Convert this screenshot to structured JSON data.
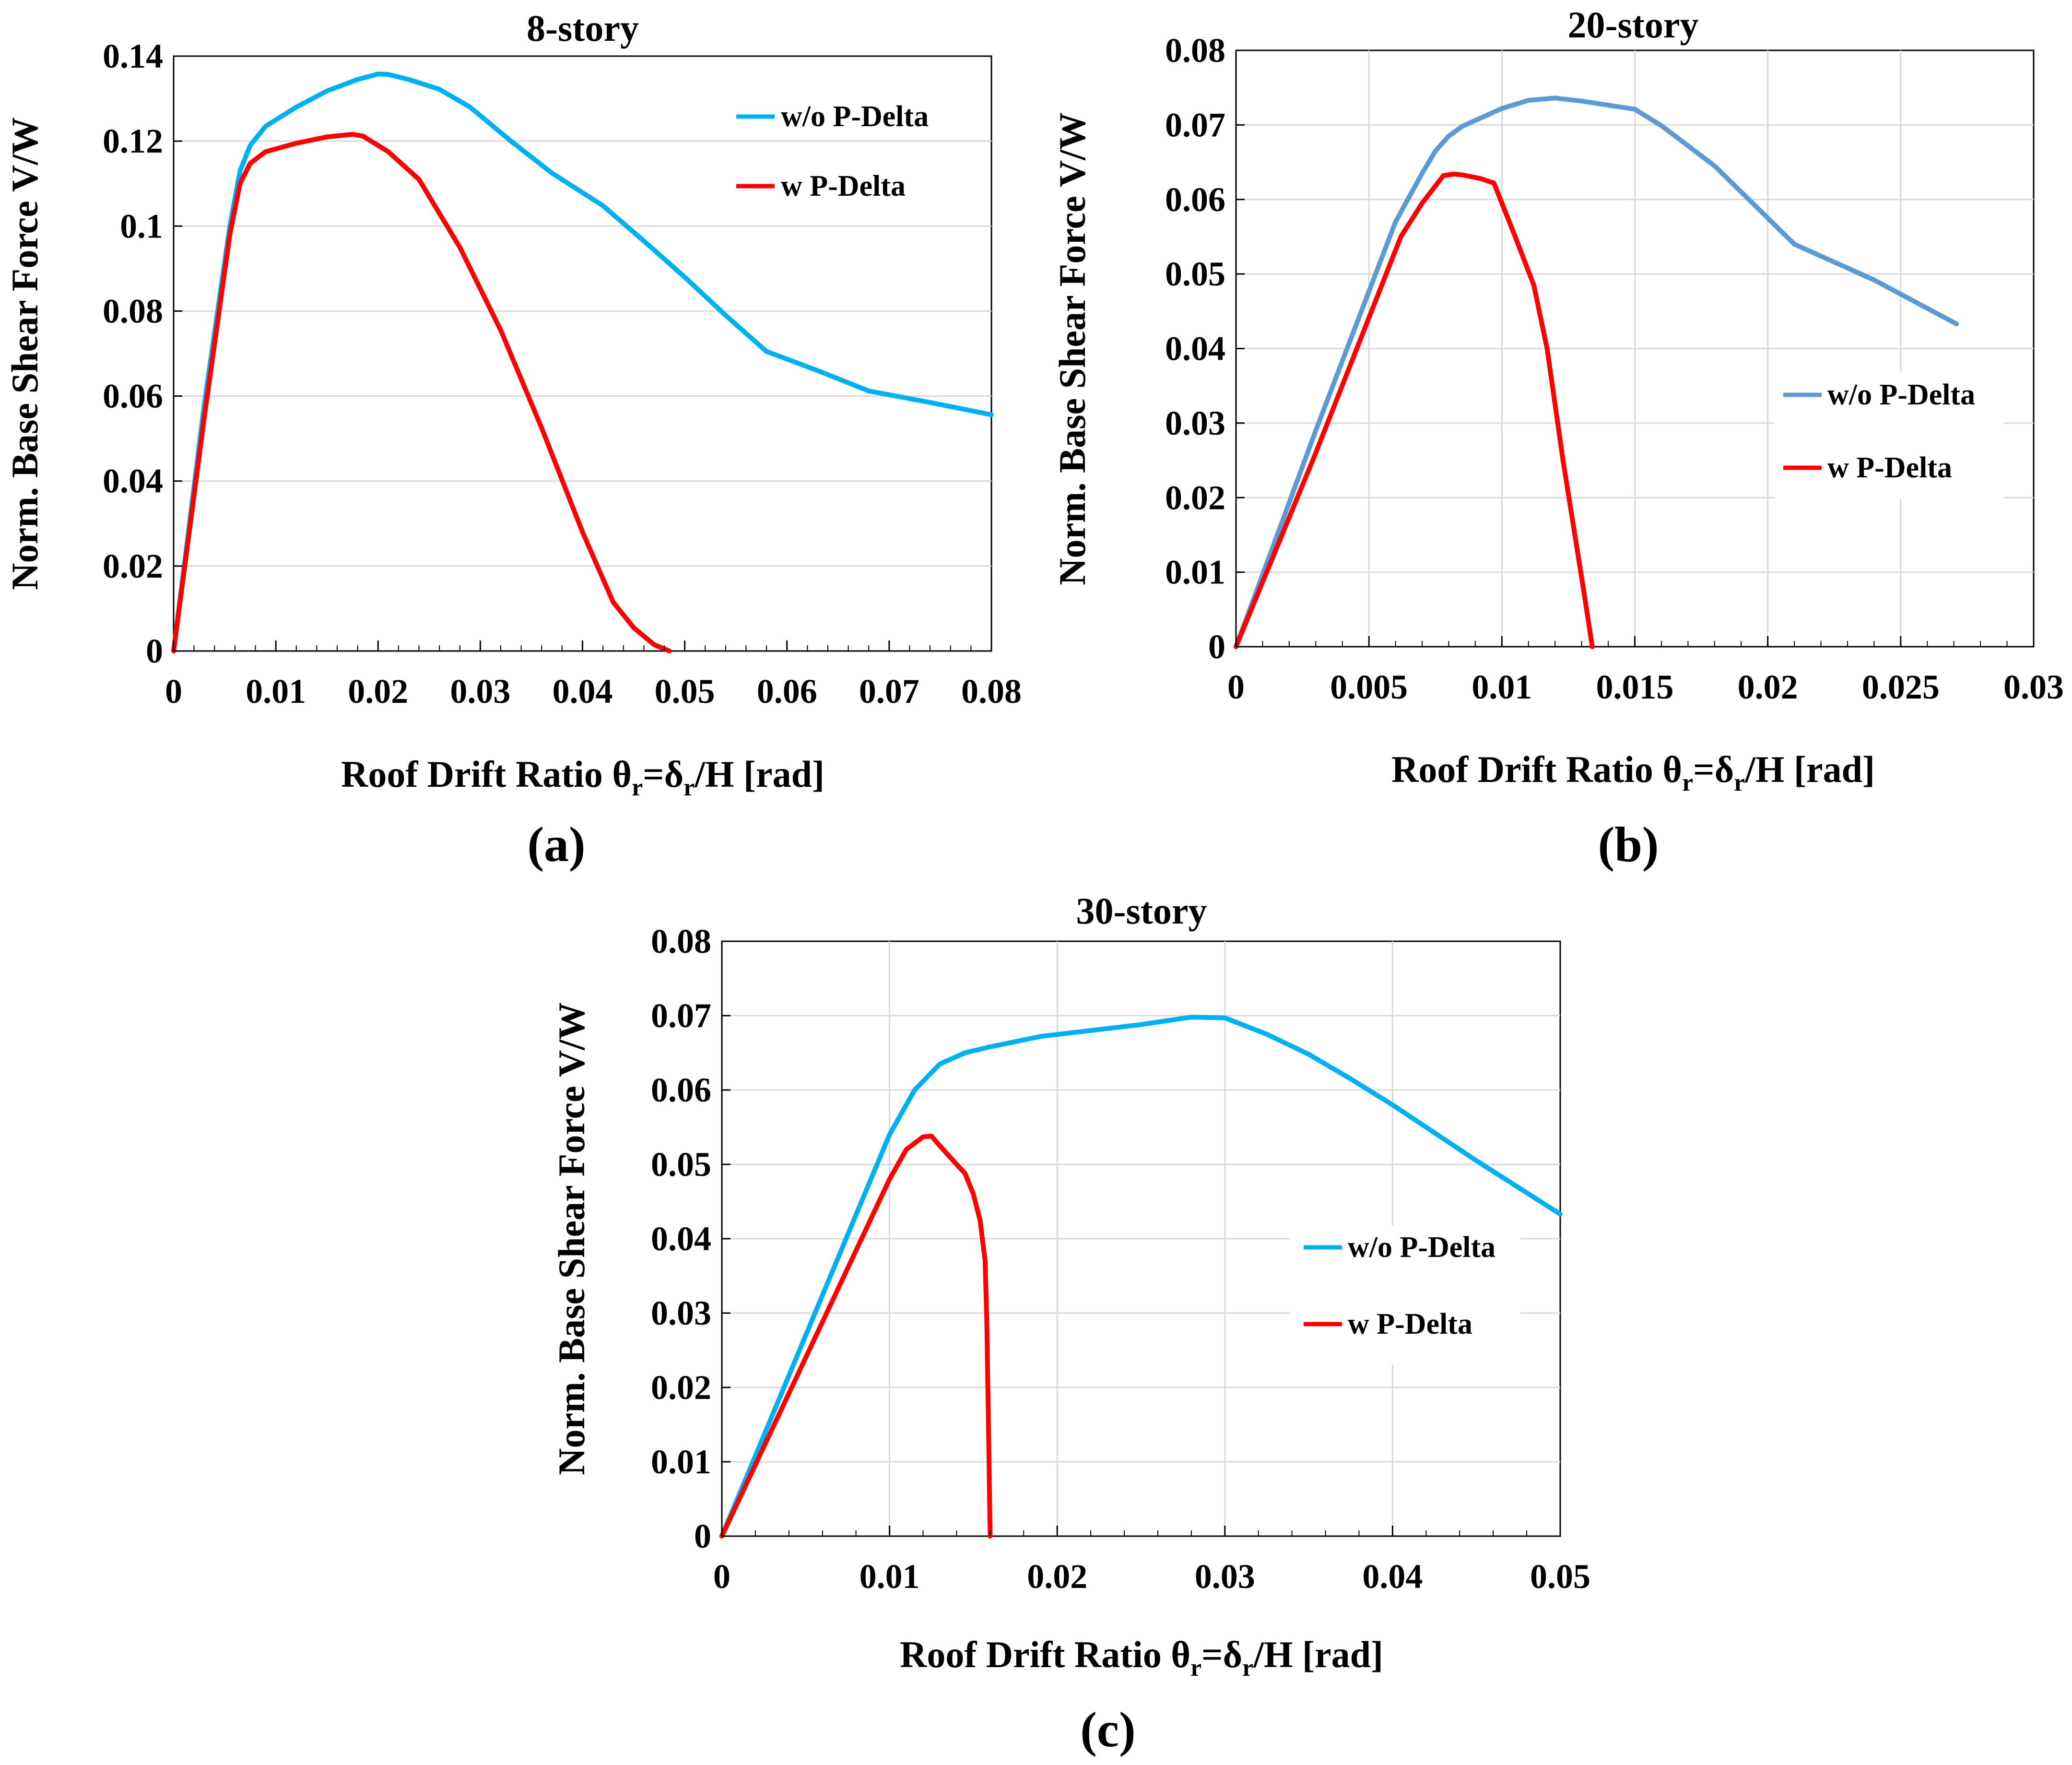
{
  "chart_data": [
    {
      "type": "line",
      "panel_label": "(a)",
      "title": "8-story",
      "xlabel": {
        "main": "Roof Drift Ratio  θ",
        "sub": "r",
        "mid": "=δ",
        "sub2": "r",
        "end": "/H [rad]"
      },
      "ylabel": "Norm. Base Shear Force  V/W",
      "xlim": [
        0,
        0.08
      ],
      "ylim": [
        0,
        0.14
      ],
      "xticks": [
        0,
        0.01,
        0.02,
        0.03,
        0.04,
        0.05,
        0.06,
        0.07,
        0.08
      ],
      "xtick_labels": [
        "0",
        "0.01",
        "0.02",
        "0.03",
        "0.04",
        "0.05",
        "0.06",
        "0.07",
        "0.08"
      ],
      "yticks": [
        0,
        0.02,
        0.04,
        0.06,
        0.08,
        0.1,
        0.12,
        0.14
      ],
      "ytick_labels": [
        "0",
        "0.02",
        "0.04",
        "0.06",
        "0.08",
        "0.1",
        "0.12",
        "0.14"
      ],
      "legend_position": "top-right",
      "series": [
        {
          "name": "w/o P-Delta",
          "color": "#00b0f0",
          "x": [
            0,
            0.003,
            0.0055,
            0.0065,
            0.0075,
            0.009,
            0.012,
            0.015,
            0.018,
            0.02,
            0.021,
            0.023,
            0.026,
            0.029,
            0.033,
            0.037,
            0.042,
            0.046,
            0.05,
            0.054,
            0.058,
            0.063,
            0.068,
            0.074,
            0.08
          ],
          "y": [
            0,
            0.058,
            0.1,
            0.113,
            0.119,
            0.1235,
            0.128,
            0.1318,
            0.1345,
            0.1358,
            0.1357,
            0.1345,
            0.1322,
            0.128,
            0.12,
            0.1125,
            0.1048,
            0.0965,
            0.088,
            0.079,
            0.0705,
            0.066,
            0.0612,
            0.0585,
            0.0556
          ]
        },
        {
          "name": "w P-Delta",
          "color": "#ff0000",
          "x": [
            0,
            0.003,
            0.0055,
            0.0065,
            0.0075,
            0.009,
            0.012,
            0.015,
            0.0175,
            0.0185,
            0.021,
            0.024,
            0.028,
            0.032,
            0.036,
            0.04,
            0.043,
            0.045,
            0.047,
            0.0485
          ],
          "y": [
            0,
            0.055,
            0.098,
            0.11,
            0.1148,
            0.1175,
            0.1195,
            0.121,
            0.1216,
            0.1212,
            0.1175,
            0.111,
            0.095,
            0.0755,
            0.0525,
            0.028,
            0.0115,
            0.0055,
            0.0015,
            0
          ]
        }
      ]
    },
    {
      "type": "line",
      "panel_label": "(b)",
      "title": "20-story",
      "xlabel": {
        "main": "Roof Drift Ratio  θ",
        "sub": "r",
        "mid": "=δ",
        "sub2": "r",
        "end": "/H [rad]"
      },
      "ylabel": "Norm. Base Shear Force  V/W",
      "xlim": [
        0,
        0.03
      ],
      "ylim": [
        0,
        0.08
      ],
      "xticks": [
        0,
        0.005,
        0.01,
        0.015,
        0.02,
        0.025,
        0.03
      ],
      "xtick_labels": [
        "0",
        "0.005",
        "0.01",
        "0.015",
        "0.02",
        "0.025",
        "0.03"
      ],
      "yticks": [
        0,
        0.01,
        0.02,
        0.03,
        0.04,
        0.05,
        0.06,
        0.07,
        0.08
      ],
      "ytick_labels": [
        "0",
        "0.01",
        "0.02",
        "0.03",
        "0.04",
        "0.05",
        "0.06",
        "0.07",
        "0.08"
      ],
      "legend_position": "right",
      "series": [
        {
          "name": "w/o P-Delta",
          "color": "#5b9bd5",
          "x": [
            0,
            0.003,
            0.006,
            0.007,
            0.0075,
            0.008,
            0.0085,
            0.01,
            0.011,
            0.012,
            0.013,
            0.015,
            0.016,
            0.018,
            0.02,
            0.021,
            0.024,
            0.0271
          ],
          "y": [
            0,
            0.029,
            0.057,
            0.0635,
            0.0665,
            0.0685,
            0.0698,
            0.0722,
            0.0733,
            0.0736,
            0.0732,
            0.0721,
            0.0699,
            0.0645,
            0.0575,
            0.054,
            0.0492,
            0.0433
          ]
        },
        {
          "name": "w P-Delta",
          "color": "#ff0000",
          "x": [
            0,
            0.003,
            0.0062,
            0.007,
            0.0078,
            0.0082,
            0.0085,
            0.0092,
            0.0097,
            0.0105,
            0.0112,
            0.0117,
            0.0123,
            0.0127,
            0.0131,
            0.0134
          ],
          "y": [
            0,
            0.026,
            0.055,
            0.0595,
            0.0632,
            0.0634,
            0.0633,
            0.0628,
            0.0622,
            0.055,
            0.0485,
            0.04,
            0.025,
            0.016,
            0.007,
            0
          ]
        }
      ]
    },
    {
      "type": "line",
      "panel_label": "(c)",
      "title": "30-story",
      "xlabel": {
        "main": "Roof Drift Ratio  θ",
        "sub": "r",
        "mid": "=δ",
        "sub2": "r",
        "end": "/H [rad]"
      },
      "ylabel": "Norm. Base Shear Force  V/W",
      "xlim": [
        0,
        0.05
      ],
      "ylim": [
        0,
        0.08
      ],
      "xticks": [
        0,
        0.01,
        0.02,
        0.03,
        0.04,
        0.05
      ],
      "xtick_labels": [
        "0",
        "0.01",
        "0.02",
        "0.03",
        "0.04",
        "0.05"
      ],
      "yticks": [
        0,
        0.01,
        0.02,
        0.03,
        0.04,
        0.05,
        0.06,
        0.07,
        0.08
      ],
      "ytick_labels": [
        "0",
        "0.01",
        "0.02",
        "0.03",
        "0.04",
        "0.05",
        "0.06",
        "0.07",
        "0.08"
      ],
      "legend_position": "right",
      "series": [
        {
          "name": "w/o P-Delta",
          "color": "#00b0f0",
          "x": [
            0,
            0.005,
            0.01,
            0.0115,
            0.013,
            0.0145,
            0.016,
            0.019,
            0.022,
            0.025,
            0.028,
            0.03,
            0.0325,
            0.035,
            0.0375,
            0.04,
            0.045,
            0.05
          ],
          "y": [
            0,
            0.027,
            0.054,
            0.06,
            0.0635,
            0.065,
            0.0658,
            0.0672,
            0.068,
            0.0688,
            0.0698,
            0.0697,
            0.0675,
            0.0648,
            0.0615,
            0.058,
            0.0505,
            0.0433
          ]
        },
        {
          "name": "w P-Delta",
          "color": "#ff0000",
          "x": [
            0,
            0.005,
            0.01,
            0.011,
            0.012,
            0.0125,
            0.013,
            0.014,
            0.0145,
            0.015,
            0.0154,
            0.0157,
            0.0158,
            0.0159,
            0.016
          ],
          "y": [
            0,
            0.024,
            0.048,
            0.052,
            0.0537,
            0.0538,
            0.0525,
            0.05,
            0.0488,
            0.046,
            0.0425,
            0.037,
            0.029,
            0.015,
            0
          ]
        }
      ]
    }
  ]
}
